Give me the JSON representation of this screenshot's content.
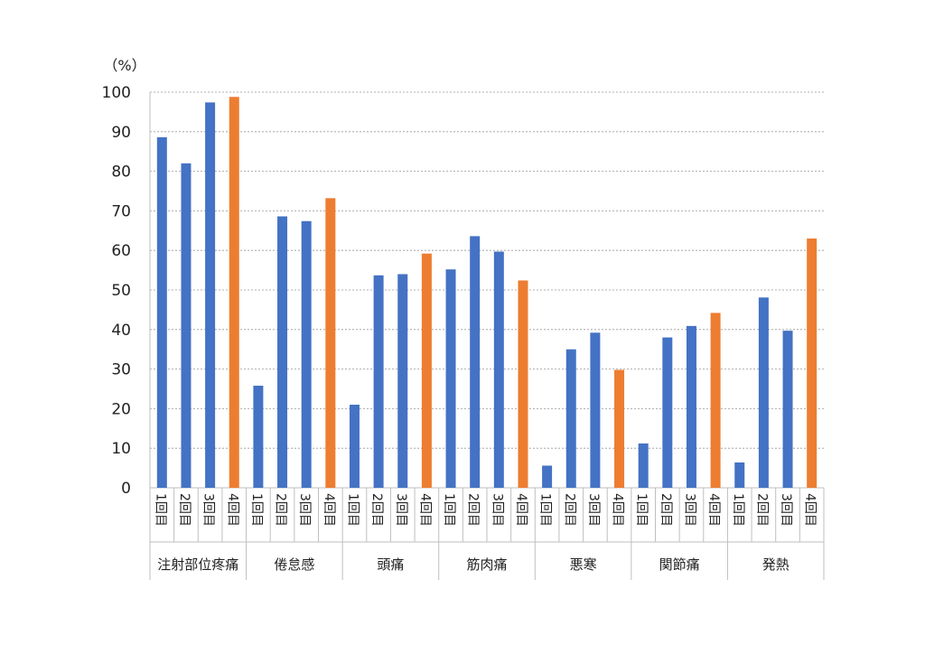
{
  "chart_data": {
    "type": "bar",
    "unit_label": "（%）",
    "ylim": [
      0,
      100
    ],
    "yticks": [
      0,
      10,
      20,
      30,
      40,
      50,
      60,
      70,
      80,
      90,
      100
    ],
    "grid": true,
    "dose_labels": [
      "1回目",
      "2回目",
      "3回目",
      "4回目"
    ],
    "colors": {
      "doses_1_3": "#4472C4",
      "dose_4": "#ED7D31",
      "grid": "#999999",
      "axis": "#bfbfbf"
    },
    "groups": [
      {
        "name": "注射部位疼痛",
        "values": [
          88.6,
          82.0,
          97.4,
          98.8
        ]
      },
      {
        "name": "倦怠感",
        "values": [
          25.8,
          68.6,
          67.4,
          73.2
        ]
      },
      {
        "name": "頭痛",
        "values": [
          21.0,
          53.7,
          54.0,
          59.2
        ]
      },
      {
        "name": "筋肉痛",
        "values": [
          55.2,
          63.6,
          59.7,
          52.4
        ]
      },
      {
        "name": "悪寒",
        "values": [
          5.6,
          35.0,
          39.2,
          29.8
        ]
      },
      {
        "name": "関節痛",
        "values": [
          11.2,
          38.0,
          40.9,
          44.2
        ]
      },
      {
        "name": "発熱",
        "values": [
          6.4,
          48.1,
          39.7,
          63.0
        ]
      }
    ]
  }
}
